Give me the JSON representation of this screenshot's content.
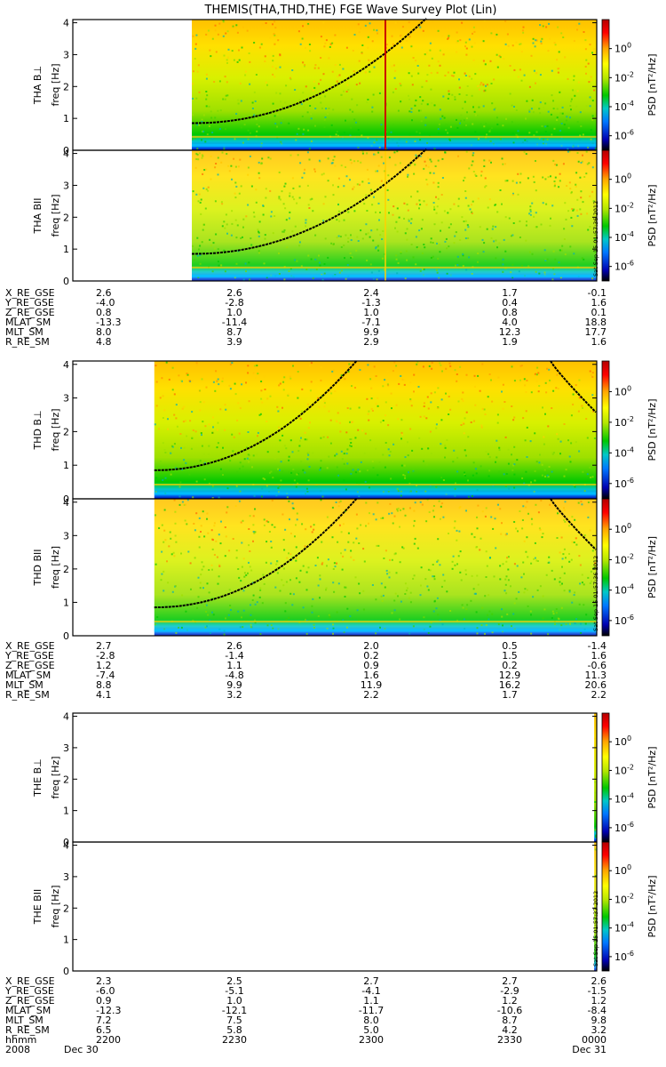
{
  "chart_data": {
    "type": "heatmap",
    "title": "THEMIS(THA,THD,THE) FGE Wave Survey Plot (Lin)",
    "freq_axis_label": "freq [Hz]",
    "freq_range": [
      0,
      4.1
    ],
    "freq_ticks": [
      "0",
      "1",
      "2",
      "3",
      "4"
    ],
    "colorbar": {
      "label": "PSD [nT²/Hz]",
      "scale": "log",
      "range": [
        1e-07,
        100
      ],
      "ticks": [
        {
          "base": "10",
          "exp": "0",
          "value": 1
        },
        {
          "base": "10",
          "exp": "-2",
          "value": 0.01
        },
        {
          "base": "10",
          "exp": "-4",
          "value": 0.0001
        },
        {
          "base": "10",
          "exp": "-6",
          "value": 1e-06
        }
      ],
      "colors": [
        "#000000",
        "#0000b0",
        "#0078ff",
        "#00c8c8",
        "#00c800",
        "#b4e600",
        "#ffff00",
        "#ffa500",
        "#ff0000",
        "#b40000"
      ]
    },
    "time_range": [
      "2008-12-30 21:45",
      "2008-12-31 00:00"
    ],
    "panels": [
      {
        "probe": "THA",
        "component": "B⊥",
        "ylabel": "THA B⊥",
        "data_start": "22:15:40",
        "stamp": ""
      },
      {
        "probe": "THA",
        "component": "BII",
        "ylabel": "THA BII",
        "data_start": "22:15:40",
        "stamp": "Sat Sep 15 01:57:36 2012"
      },
      {
        "probe": "THD",
        "component": "B⊥",
        "ylabel": "THD B⊥",
        "data_start": "22:06:00",
        "stamp": ""
      },
      {
        "probe": "THD",
        "component": "BII",
        "ylabel": "THD BII",
        "data_start": "22:06:00",
        "stamp": "Sat Sep 15 01:57:36 2012"
      },
      {
        "probe": "THE",
        "component": "B⊥",
        "ylabel": "THE B⊥",
        "data_start": "23:59:20",
        "stamp": ""
      },
      {
        "probe": "THE",
        "component": "BII",
        "ylabel": "THE BII",
        "data_start": "23:59:20",
        "stamp": "Sat Sep 15 01:57:37 2012"
      }
    ],
    "ephemeris_labels": [
      "X_RE_GSE",
      "Y_RE_GSE",
      "Z_RE_GSE",
      "MLAT_SM",
      "MLT_SM",
      "R_RE_SM"
    ],
    "ephemeris_blocks": [
      {
        "probe": "THA",
        "values": [
          [
            "2.6",
            "2.6",
            "2.4",
            "1.7",
            "-0.1"
          ],
          [
            "-4.0",
            "-2.8",
            "-1.3",
            "0.4",
            "1.6"
          ],
          [
            "0.8",
            "1.0",
            "1.0",
            "0.8",
            "0.1"
          ],
          [
            "-13.3",
            "-11.4",
            "-7.1",
            "4.0",
            "18.8"
          ],
          [
            "8.0",
            "8.7",
            "9.9",
            "12.3",
            "17.7"
          ],
          [
            "4.8",
            "3.9",
            "2.9",
            "1.9",
            "1.6"
          ]
        ]
      },
      {
        "probe": "THD",
        "values": [
          [
            "2.7",
            "2.6",
            "2.0",
            "0.5",
            "-1.4"
          ],
          [
            "-2.8",
            "-1.4",
            "0.2",
            "1.5",
            "1.6"
          ],
          [
            "1.2",
            "1.1",
            "0.9",
            "0.2",
            "-0.6"
          ],
          [
            "-7.4",
            "-4.8",
            "1.6",
            "12.9",
            "11.3"
          ],
          [
            "8.8",
            "9.9",
            "11.9",
            "16.2",
            "20.6"
          ],
          [
            "4.1",
            "3.2",
            "2.2",
            "1.7",
            "2.2"
          ]
        ]
      },
      {
        "probe": "THE",
        "values": [
          [
            "2.3",
            "2.5",
            "2.7",
            "2.7",
            "2.6"
          ],
          [
            "-6.0",
            "-5.1",
            "-4.1",
            "-2.9",
            "-1.5"
          ],
          [
            "0.9",
            "1.0",
            "1.1",
            "1.2",
            "1.2"
          ],
          [
            "-12.3",
            "-12.1",
            "-11.7",
            "-10.6",
            "-8.4"
          ],
          [
            "7.2",
            "7.5",
            "8.0",
            "8.7",
            "9.8"
          ],
          [
            "6.5",
            "5.8",
            "5.0",
            "4.2",
            "3.2"
          ]
        ]
      }
    ],
    "time_label": "hhmm",
    "time_ticks": [
      "2200",
      "2230",
      "2300",
      "2330",
      "0000"
    ],
    "year_label": "2008",
    "date_labels": [
      "Dec 30",
      "Dec 31"
    ]
  }
}
